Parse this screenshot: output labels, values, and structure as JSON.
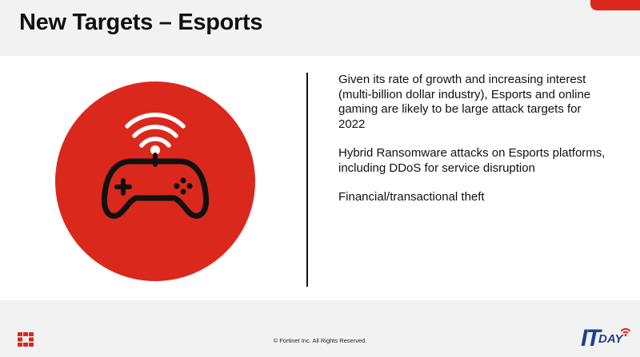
{
  "slide": {
    "title": "New Targets – Esports",
    "bullets": [
      "Given its rate of growth and increasing interest (multi-billion dollar industry), Esports and online gaming are likely to be large attack targets for 2022",
      "Hybrid Ransomware attacks on Esports platforms, including DDoS for service disruption",
      "Financial/transactional theft"
    ],
    "icon": "gamepad-wifi-icon"
  },
  "footer": {
    "copyright": "© Fortinet Inc. All Rights Reserved.",
    "left_logo": "fortinet-logo-icon",
    "right_logo_it": "IT",
    "right_logo_day": "DAY"
  },
  "colors": {
    "accent": "#da291c",
    "band": "#f2f2f2",
    "itday_blue": "#1f3f8f"
  }
}
